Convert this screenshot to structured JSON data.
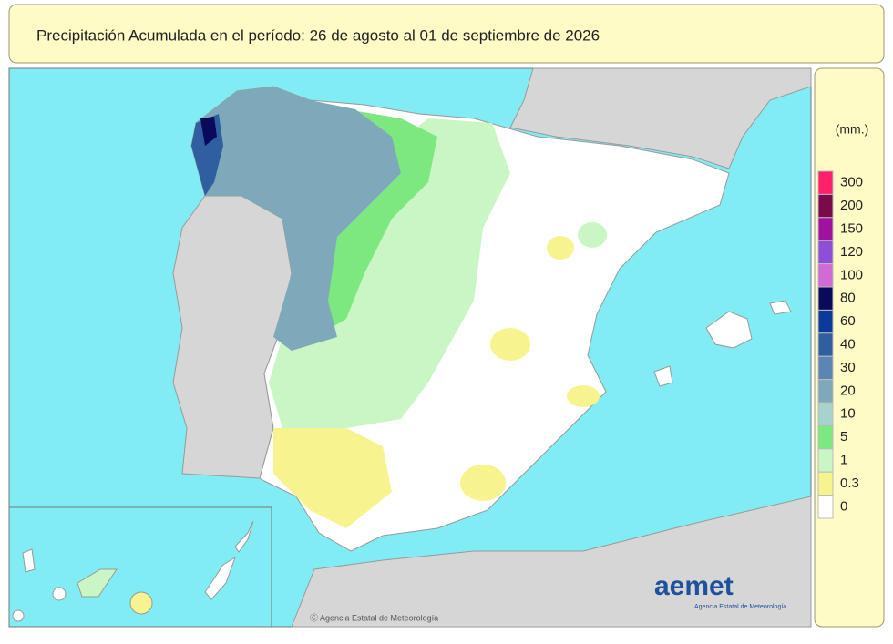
{
  "header": {
    "title": "Precipitación Acumulada en el período: 26  de agosto  al 01  de septiembre de  2026"
  },
  "legend": {
    "unit": "(mm.)",
    "items": [
      {
        "label": 300,
        "color": "#ff1f6a"
      },
      {
        "label": 200,
        "color": "#7a0a4a"
      },
      {
        "label": 150,
        "color": "#a0119e"
      },
      {
        "label": 120,
        "color": "#8e4fd6"
      },
      {
        "label": 100,
        "color": "#d26ad6"
      },
      {
        "label": 80,
        "color": "#0a0a5a"
      },
      {
        "label": 60,
        "color": "#0b3a9a"
      },
      {
        "label": 40,
        "color": "#2f5f9f"
      },
      {
        "label": 30,
        "color": "#5b86b3"
      },
      {
        "label": 20,
        "color": "#7ea9bb"
      },
      {
        "label": 10,
        "color": "#a6d4cc"
      },
      {
        "label": 5,
        "color": "#7ee880"
      },
      {
        "label": 1,
        "color": "#c9f6c4"
      },
      {
        "label": 0.3,
        "color": "#f7f48f"
      },
      {
        "label": 0,
        "color": "#ffffff"
      }
    ]
  },
  "logo": {
    "name": "aemet",
    "subtitle": "Agencia Estatal de Meteorología"
  },
  "credit": "Ⓒ Agencia Estatal de Meteorología"
}
